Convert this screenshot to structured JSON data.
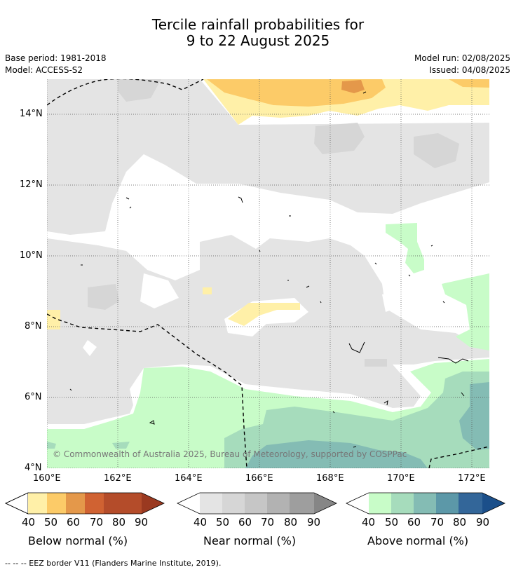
{
  "title_line1": "Tercile rainfall probabilities for",
  "title_line2": "9 to 22 August 2025",
  "base_period": "Base period: 1981-2018",
  "model": "Model: ACCESS-S2",
  "model_run": "Model run: 02/08/2025",
  "issued": "Issued: 04/08/2025",
  "copyright": "© Commonwealth of Australia 2025, Bureau of Meteorology, supported by COSPPac",
  "lat_labels": [
    "14°N",
    "12°N",
    "10°N",
    "8°N",
    "6°N",
    "4°N"
  ],
  "lon_labels": [
    "160°E",
    "162°E",
    "164°E",
    "166°E",
    "168°E",
    "170°E",
    "172°E"
  ],
  "colorbars": [
    {
      "label": "Below normal (%)",
      "ticks": [
        "40",
        "50",
        "60",
        "70",
        "80",
        "90"
      ],
      "colors": [
        "#fff0a8",
        "#fccb68",
        "#e4984a",
        "#d06232",
        "#b44c2a",
        "#9a3920"
      ]
    },
    {
      "label": "Near normal (%)",
      "ticks": [
        "40",
        "50",
        "60",
        "70",
        "80",
        "90"
      ],
      "colors": [
        "#e4e4e4",
        "#d6d6d6",
        "#c6c6c6",
        "#b2b2b2",
        "#9e9e9e",
        "#868686"
      ]
    },
    {
      "label": "Above normal (%)",
      "ticks": [
        "40",
        "50",
        "60",
        "70",
        "80",
        "90"
      ],
      "colors": [
        "#c8fcc8",
        "#a6dcbc",
        "#84bcb4",
        "#5c98a8",
        "#336699",
        "#1b4f8a"
      ]
    }
  ],
  "footer": "--  --  -- EEZ border V11 (Flanders Marine Institute, 2019)."
}
